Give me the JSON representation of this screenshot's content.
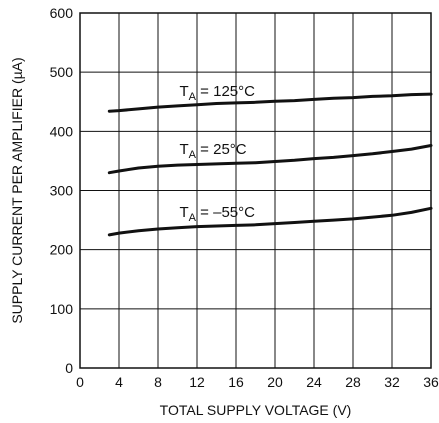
{
  "chart_data": {
    "type": "line",
    "xlabel": "TOTAL SUPPLY VOLTAGE (V)",
    "ylabel": "SUPPLY CURRENT PER AMPLIFIER (µA)",
    "xlim": [
      0,
      36
    ],
    "ylim": [
      0,
      600
    ],
    "xticks": [
      "0",
      "4",
      "8",
      "12",
      "16",
      "20",
      "24",
      "28",
      "32",
      "36"
    ],
    "yticks": [
      "0",
      "100",
      "200",
      "300",
      "400",
      "500",
      "600"
    ],
    "grid": true,
    "legend": "none",
    "line_color": "#111111",
    "x": [
      3,
      4,
      6,
      8,
      10,
      12,
      14,
      16,
      18,
      20,
      22,
      24,
      26,
      28,
      30,
      32,
      34,
      36
    ],
    "series": [
      {
        "name": "TA = 125°C",
        "label": {
          "main": "T",
          "sub": "A",
          "rest": " = 125°C"
        },
        "values": [
          434,
          435,
          438,
          441,
          443,
          445,
          447,
          448,
          449,
          451,
          452,
          454,
          456,
          457,
          459,
          460,
          462,
          463
        ]
      },
      {
        "name": "TA = 25°C",
        "label": {
          "main": "T",
          "sub": "A",
          "rest": " = 25°C"
        },
        "values": [
          330,
          333,
          338,
          341,
          343,
          344,
          345,
          346,
          347,
          349,
          351,
          354,
          356,
          359,
          362,
          366,
          370,
          376
        ]
      },
      {
        "name": "TA = –55°C",
        "label": {
          "main": "T",
          "sub": "A",
          "rest": " = –55°C"
        },
        "values": [
          225,
          228,
          232,
          235,
          237,
          239,
          240,
          241,
          242,
          244,
          246,
          248,
          250,
          252,
          255,
          258,
          263,
          270
        ]
      }
    ]
  }
}
